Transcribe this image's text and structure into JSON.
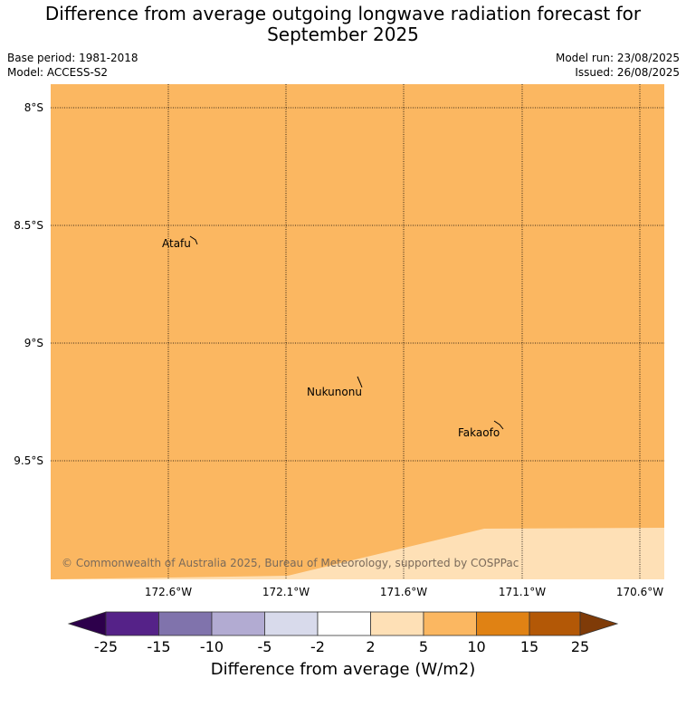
{
  "title_line1": "Difference from average outgoing longwave radiation forecast for",
  "title_line2": "September 2025",
  "base_period": "Base period: 1981-2018",
  "model": "Model: ACCESS-S2",
  "model_run": "Model run: 23/08/2025",
  "issued": "Issued: 26/08/2025",
  "lat_labels": [
    "8°S",
    "8.5°S",
    "9°S",
    "9.5°S"
  ],
  "lon_labels": [
    "172.6°W",
    "172.1°W",
    "171.6°W",
    "171.1°W",
    "170.6°W"
  ],
  "places": {
    "atafu": "Atafu",
    "nukunonu": "Nukunonu",
    "fakaofo": "Fakaofo"
  },
  "copyright": "© Commonwealth of Australia 2025, Bureau of Meteorology, supported by COSPPac",
  "colorbar": {
    "ticks": [
      "-25",
      "-15",
      "-10",
      "-5",
      "-2",
      "2",
      "5",
      "10",
      "15",
      "25"
    ],
    "colors": [
      "#552288",
      "#8073ac",
      "#b2abd2",
      "#d8daeb",
      "#ffffff",
      "#fee0b6",
      "#fbb761",
      "#e08214",
      "#b35806"
    ],
    "under_color": "#2d004b",
    "over_color": "#7f3b08",
    "label": "Difference from average (W/m2)"
  },
  "map_colors": {
    "main": "#fbb761",
    "lower_band": "#fee0b6"
  }
}
